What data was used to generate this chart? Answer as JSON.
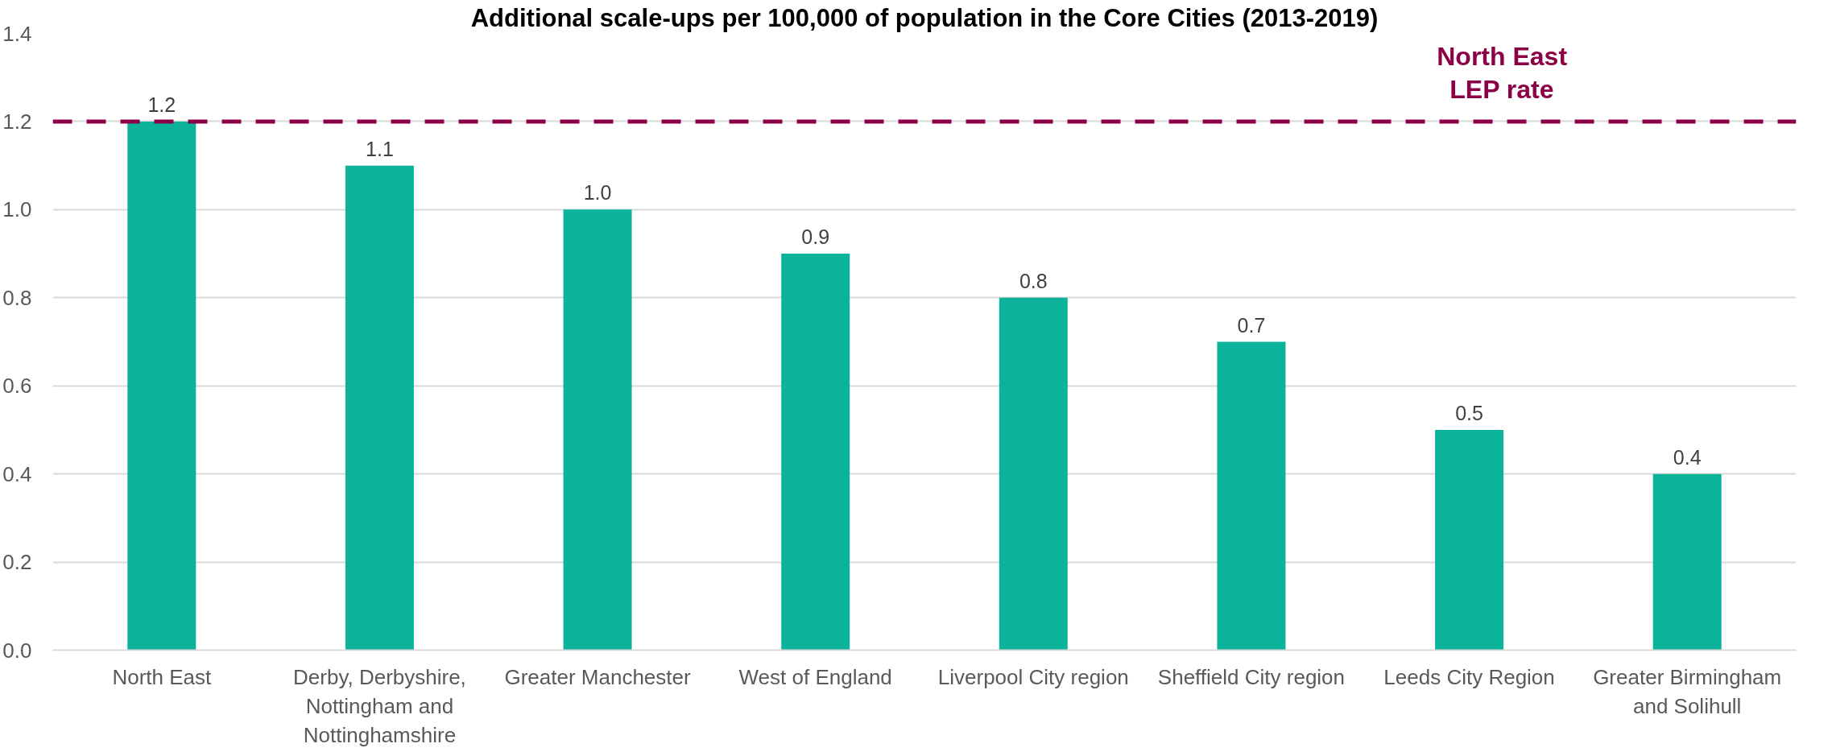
{
  "chart_data": {
    "type": "bar",
    "title": "Additional scale-ups per 100,000 of population in the Core Cities (2013-2019)",
    "categories": [
      "North East",
      "Derby, Derbyshire, Nottingham and Nottinghamshire",
      "Greater Manchester",
      "West of England",
      "Liverpool City region",
      "Sheffield City region",
      "Leeds City Region",
      "Greater Birmingham and Solihull"
    ],
    "values": [
      1.2,
      1.1,
      1.0,
      0.9,
      0.8,
      0.7,
      0.5,
      0.4
    ],
    "color": "#0ab39a",
    "value_labels": [
      "1.2",
      "1.1",
      "1.0",
      "0.9",
      "0.8",
      "0.7",
      "0.5",
      "0.4"
    ],
    "ylim": [
      0,
      1.4
    ],
    "yticks": [
      {
        "value": 0,
        "label": "0.0"
      },
      0.2,
      0.4,
      0.6,
      0.8,
      {
        "value": 1,
        "label": "1.0"
      },
      1.2,
      1.4
    ],
    "grid": "y",
    "ref_lines": [
      {
        "axis": "y",
        "value": 1.2,
        "label": "North East LEP rate",
        "color": "#8c0047",
        "line_style": "dashed"
      }
    ]
  }
}
